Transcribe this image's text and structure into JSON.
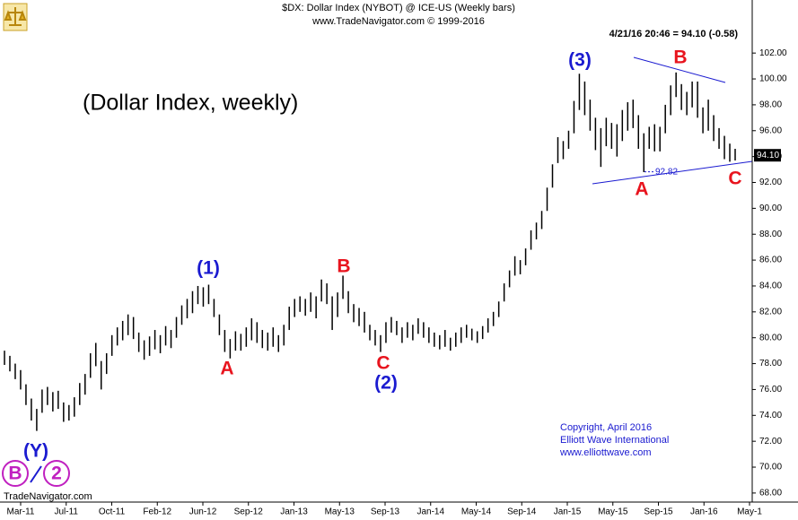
{
  "chart_data": {
    "type": "bar",
    "title": "$DX:  Dollar Index (NYBOT) @ ICE-US  (Weekly bars)",
    "subtitle": "www.TradeNavigator.com © 1999-2016",
    "quote": "4/21/16 20:46 = 94.10 (-0.58)",
    "annotations": [
      "(Dollar Index, weekly)",
      "(1)",
      "A",
      "B",
      "C",
      "(2)",
      "(3)",
      "A",
      "B",
      "C",
      "(Y)",
      "B",
      "2"
    ],
    "copyright": [
      "Copyright, April 2016",
      "Elliott Wave International",
      "www.elliottwave.com"
    ],
    "source": "TradeNavigator.com",
    "low_marker": 92.82,
    "last_price": {
      "value": 94.1,
      "label": "94.10"
    },
    "color": "#000000",
    "categories": [
      "Mar-11",
      "Jul-11",
      "Oct-11",
      "Feb-12",
      "Jun-12",
      "Sep-12",
      "Jan-13",
      "May-13",
      "Sep-13",
      "Jan-14",
      "May-14",
      "Sep-14",
      "Jan-15",
      "May-15",
      "Sep-15",
      "Jan-16",
      "May-1"
    ],
    "ylim": [
      67.3,
      106.1
    ],
    "yticks": [
      {
        "value": 68,
        "label": "68.00"
      },
      {
        "value": 70,
        "label": "70.00"
      },
      {
        "value": 72,
        "label": "72.00"
      },
      {
        "value": 74,
        "label": "74.00"
      },
      {
        "value": 76,
        "label": "76.00"
      },
      {
        "value": 78,
        "label": "78.00"
      },
      {
        "value": 80,
        "label": "80.00"
      },
      {
        "value": 82,
        "label": "82.00"
      },
      {
        "value": 84,
        "label": "84.00"
      },
      {
        "value": 86,
        "label": "86.00"
      },
      {
        "value": 88,
        "label": "88.00"
      },
      {
        "value": 90,
        "label": "90.00"
      },
      {
        "value": 92,
        "label": "92.00"
      },
      {
        "value": 94,
        "label": "94.00"
      },
      {
        "value": 96,
        "label": "96.00"
      },
      {
        "value": 98,
        "label": "98.00"
      },
      {
        "value": 100,
        "label": "100.00"
      },
      {
        "value": 102,
        "label": "102.00"
      }
    ],
    "high": [
      79.0,
      78.6,
      78.0,
      77.5,
      76.4,
      75.3,
      74.5,
      76.0,
      76.2,
      75.8,
      75.9,
      75.0,
      74.8,
      75.4,
      76.5,
      77.2,
      78.8,
      79.6,
      78.2,
      78.8,
      80.2,
      80.8,
      81.3,
      81.8,
      81.6,
      80.4,
      79.8,
      80.1,
      80.6,
      80.2,
      80.9,
      80.6,
      81.6,
      82.5,
      83.0,
      83.6,
      84.0,
      83.9,
      84.1,
      83.0,
      81.8,
      80.6,
      79.9,
      80.5,
      80.3,
      80.8,
      81.5,
      81.2,
      80.6,
      80.4,
      80.8,
      80.2,
      81.0,
      82.4,
      83.0,
      83.2,
      83.0,
      83.5,
      83.2,
      84.5,
      84.2,
      83.2,
      83.5,
      84.8,
      83.6,
      82.6,
      82.3,
      82.0,
      81.0,
      80.6,
      80.2,
      81.2,
      81.6,
      81.3,
      80.8,
      81.2,
      81.0,
      81.5,
      81.2,
      80.8,
      80.4,
      80.2,
      80.6,
      80.0,
      80.4,
      80.8,
      81.0,
      80.7,
      80.5,
      80.9,
      81.5,
      82.0,
      82.8,
      84.2,
      85.2,
      86.3,
      86.0,
      86.9,
      88.3,
      88.9,
      89.8,
      91.6,
      93.4,
      95.5,
      95.2,
      96.0,
      98.3,
      100.4,
      99.8,
      98.4,
      97.0,
      96.2,
      97.0,
      96.6,
      96.5,
      97.6,
      98.2,
      98.4,
      97.2,
      95.8,
      96.3,
      96.5,
      96.3,
      98.0,
      99.5,
      100.5,
      99.6,
      99.0,
      99.8,
      99.8,
      97.8,
      98.4,
      97.2,
      96.2,
      95.6,
      95.0,
      94.6
    ],
    "low": [
      77.9,
      77.4,
      76.8,
      76.0,
      74.8,
      73.6,
      72.8,
      74.2,
      74.8,
      74.3,
      74.5,
      73.5,
      73.6,
      73.9,
      74.8,
      75.6,
      76.9,
      77.8,
      76.0,
      77.2,
      78.6,
      79.4,
      79.8,
      80.2,
      79.9,
      78.9,
      78.3,
      78.6,
      79.1,
      78.8,
      79.4,
      79.2,
      80.0,
      81.0,
      81.5,
      81.9,
      82.6,
      82.4,
      82.6,
      81.6,
      80.2,
      78.9,
      78.4,
      79.0,
      79.0,
      79.3,
      79.8,
      79.6,
      79.2,
      79.0,
      79.3,
      78.9,
      79.4,
      80.6,
      81.6,
      82.0,
      81.7,
      82.0,
      81.5,
      82.8,
      82.6,
      80.6,
      81.6,
      83.0,
      81.9,
      81.2,
      80.9,
      80.4,
      79.8,
      79.4,
      78.9,
      79.6,
      80.4,
      80.2,
      79.6,
      80.0,
      79.8,
      80.3,
      80.0,
      79.6,
      79.3,
      79.1,
      79.3,
      79.0,
      79.3,
      79.6,
      80.0,
      79.8,
      79.6,
      79.9,
      80.4,
      80.9,
      81.6,
      82.8,
      83.9,
      84.8,
      84.9,
      85.6,
      86.8,
      87.6,
      88.4,
      89.8,
      91.6,
      93.5,
      93.8,
      94.6,
      95.8,
      97.6,
      97.2,
      96.0,
      94.5,
      93.2,
      94.8,
      94.6,
      94.0,
      95.2,
      96.0,
      96.2,
      94.6,
      92.8,
      94.6,
      94.4,
      94.4,
      95.8,
      97.2,
      98.6,
      97.6,
      97.2,
      97.8,
      97.0,
      95.8,
      96.0,
      95.2,
      94.6,
      93.8,
      93.6,
      93.7
    ]
  }
}
